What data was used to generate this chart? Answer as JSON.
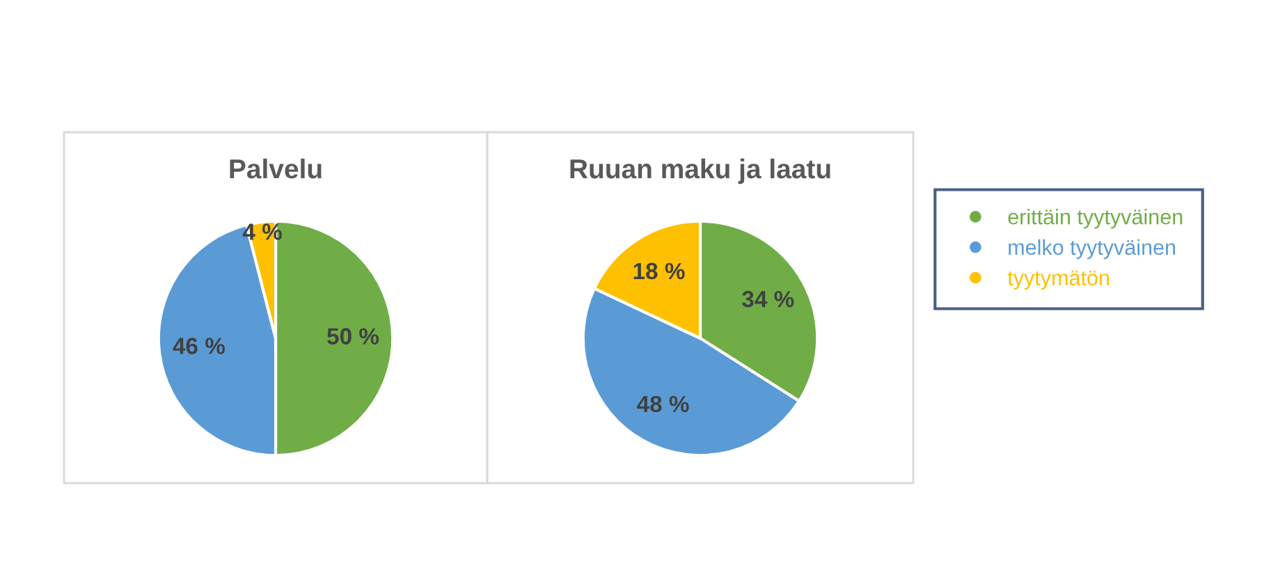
{
  "chart_data": [
    {
      "type": "pie",
      "title": "Palvelu",
      "categories": [
        "erittäin tyytyväinen",
        "melko tyytyväinen",
        "tyytymätön"
      ],
      "values": [
        50,
        46,
        4
      ],
      "colors": [
        "#70ad47",
        "#5b9bd5",
        "#ffc000"
      ],
      "value_labels": [
        "50 %",
        "46 %",
        "4 %"
      ],
      "legend": "right"
    },
    {
      "type": "pie",
      "title": "Ruuan maku ja laatu",
      "values": [
        34,
        48,
        18
      ],
      "colors": [
        "#70ad47",
        "#5b9bd5",
        "#ffc000"
      ],
      "value_labels": [
        "34 %",
        "48 %",
        "18 %"
      ]
    }
  ]
}
